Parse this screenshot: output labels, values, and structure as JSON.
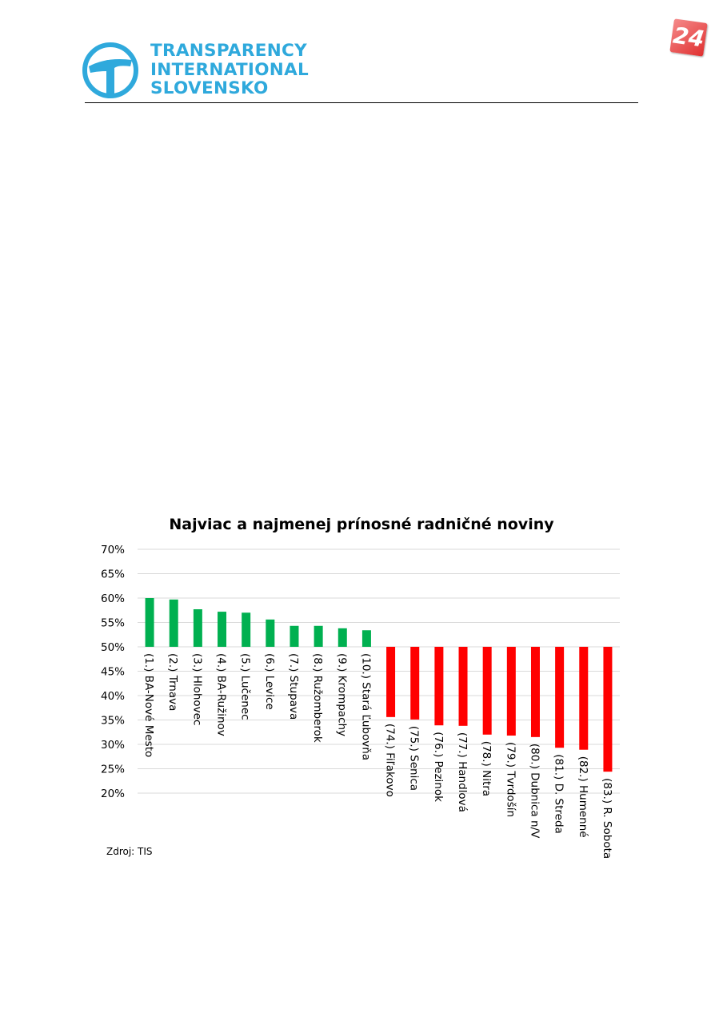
{
  "header": {
    "logo_lines": [
      "TRANSPARENCY",
      "INTERNATIONAL",
      "SLOVENSKO"
    ],
    "badge": "24"
  },
  "source": "Zdroj: TIS",
  "colors": {
    "positive": "#00b050",
    "negative": "#ff0000",
    "brand": "#2fa9dc"
  },
  "chart_data": {
    "type": "bar",
    "title": "Najviac a najmenej prínosné radničné noviny",
    "baseline": 50,
    "ylim": [
      20,
      70
    ],
    "yticks": [
      70,
      65,
      60,
      55,
      50,
      45,
      40,
      35,
      30,
      25,
      20
    ],
    "ytick_labels": [
      "70%",
      "65%",
      "60%",
      "55%",
      "50%",
      "45%",
      "40%",
      "35%",
      "30%",
      "25%",
      "20%"
    ],
    "grid": true,
    "categories": [
      "(1.) BA-Nové Mesto",
      "(2.) Trnava",
      "(3.) Hlohovec",
      "(4.) BA-Ružinov",
      "(5.) Lučenec",
      "(6.) Levice",
      "(7.) Stupava",
      "(8.) Ružomberok",
      "(9.) Krompachy",
      "(10.) Stará Ľubovňa",
      "(74.) Fiľakovo",
      "(75.) Senica",
      "(76.) Pezinok",
      "(77.) Handlová",
      "(78.) Nitra",
      "(79.) Tvrdošín",
      "(80.) Dubnica n/V",
      "(81.) D. Streda",
      "(82.) Humenné",
      "(83.) R. Sobota"
    ],
    "values": [
      60.0,
      59.7,
      57.7,
      57.2,
      57.0,
      55.6,
      54.3,
      54.3,
      53.8,
      53.4,
      35.6,
      35.1,
      33.9,
      33.8,
      32.0,
      31.8,
      31.5,
      29.3,
      28.9,
      24.4
    ]
  }
}
